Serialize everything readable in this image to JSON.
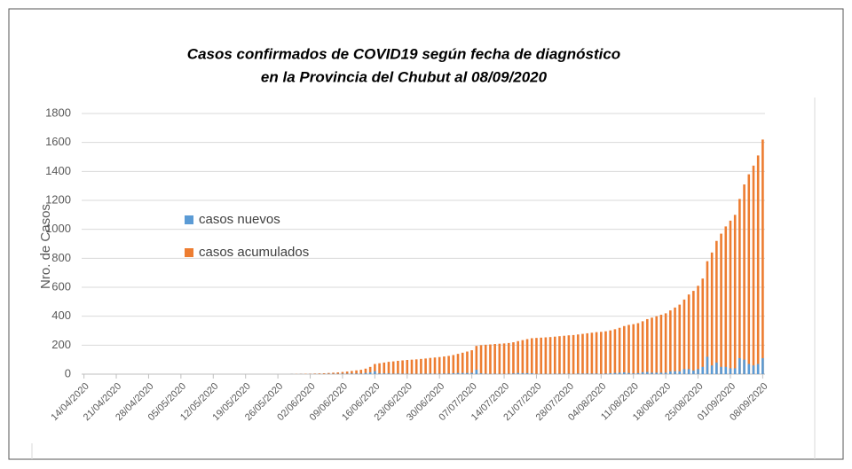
{
  "chart_data": {
    "type": "bar",
    "title": [
      "Casos confirmados de COVID19 según  fecha de diagnóstico",
      "en la  Provincia del Chubut al 08/09/2020"
    ],
    "ylabel": "Nro. de Casos",
    "categories": [
      "14/04/2020",
      null,
      null,
      null,
      null,
      null,
      null,
      "21/04/2020",
      null,
      null,
      null,
      null,
      null,
      null,
      "28/04/2020",
      null,
      null,
      null,
      null,
      null,
      null,
      "05/05/2020",
      null,
      null,
      null,
      null,
      null,
      null,
      "12/05/2020",
      null,
      null,
      null,
      null,
      null,
      null,
      "19/05/2020",
      null,
      null,
      null,
      null,
      null,
      null,
      "26/05/2020",
      null,
      null,
      null,
      null,
      null,
      null,
      "02/06/2020",
      null,
      null,
      null,
      null,
      null,
      null,
      "09/06/2020",
      null,
      null,
      null,
      null,
      null,
      null,
      "16/06/2020",
      null,
      null,
      null,
      null,
      null,
      null,
      "23/06/2020",
      null,
      null,
      null,
      null,
      null,
      null,
      "30/06/2020",
      null,
      null,
      null,
      null,
      null,
      null,
      "07/07/2020",
      null,
      null,
      null,
      null,
      null,
      null,
      "14/07/2020",
      null,
      null,
      null,
      null,
      null,
      null,
      "21/07/2020",
      null,
      null,
      null,
      null,
      null,
      null,
      "28/07/2020",
      null,
      null,
      null,
      null,
      null,
      null,
      "04/08/2020",
      null,
      null,
      null,
      null,
      null,
      null,
      "11/08/2020",
      null,
      null,
      null,
      null,
      null,
      null,
      "18/08/2020",
      null,
      null,
      null,
      null,
      null,
      null,
      "25/08/2020",
      null,
      null,
      null,
      null,
      null,
      null,
      "01/09/2020",
      null,
      null,
      null,
      null,
      null,
      null,
      "08/09/2020"
    ],
    "series": [
      {
        "name": "casos acumulados",
        "color": "#ed7d31",
        "values": [
          0,
          0,
          0,
          0,
          0,
          0,
          0,
          0,
          0,
          0,
          0,
          0,
          0,
          0,
          0,
          0,
          0,
          0,
          0,
          0,
          0,
          0,
          0,
          0,
          0,
          0,
          0,
          0,
          0,
          0,
          0,
          0,
          0,
          0,
          0,
          0,
          0,
          0,
          0,
          0,
          0,
          0,
          0,
          0,
          0,
          1,
          1,
          2,
          2,
          3,
          4,
          5,
          6,
          8,
          10,
          12,
          15,
          18,
          22,
          26,
          30,
          38,
          50,
          70,
          75,
          80,
          85,
          88,
          92,
          95,
          98,
          100,
          102,
          105,
          108,
          112,
          115,
          118,
          122,
          126,
          132,
          140,
          148,
          156,
          165,
          195,
          200,
          203,
          205,
          208,
          210,
          212,
          215,
          220,
          228,
          235,
          242,
          248,
          250,
          252,
          254,
          256,
          259,
          262,
          265,
          268,
          270,
          274,
          278,
          282,
          286,
          290,
          292,
          296,
          302,
          310,
          320,
          332,
          340,
          345,
          352,
          365,
          380,
          390,
          400,
          410,
          420,
          440,
          460,
          480,
          515,
          550,
          575,
          610,
          660,
          780,
          840,
          920,
          970,
          1020,
          1060,
          1100,
          1210,
          1310,
          1380,
          1440,
          1510,
          1620
        ]
      },
      {
        "name": "casos nuevos",
        "color": "#5b9bd5",
        "values": [
          0,
          0,
          0,
          0,
          0,
          0,
          0,
          0,
          0,
          0,
          0,
          0,
          0,
          0,
          0,
          0,
          0,
          0,
          0,
          0,
          0,
          0,
          0,
          0,
          0,
          0,
          0,
          0,
          0,
          0,
          0,
          0,
          0,
          0,
          0,
          0,
          0,
          0,
          0,
          0,
          0,
          0,
          0,
          0,
          0,
          1,
          0,
          1,
          0,
          1,
          1,
          1,
          1,
          2,
          2,
          2,
          3,
          3,
          4,
          4,
          4,
          8,
          12,
          20,
          5,
          5,
          5,
          3,
          4,
          3,
          3,
          2,
          2,
          3,
          3,
          4,
          3,
          3,
          4,
          4,
          6,
          8,
          8,
          8,
          9,
          30,
          5,
          3,
          2,
          3,
          2,
          2,
          3,
          5,
          8,
          7,
          7,
          6,
          2,
          2,
          2,
          2,
          3,
          3,
          3,
          3,
          2,
          4,
          4,
          4,
          4,
          4,
          2,
          4,
          6,
          8,
          10,
          12,
          8,
          5,
          7,
          13,
          15,
          10,
          10,
          10,
          10,
          20,
          20,
          20,
          35,
          35,
          25,
          35,
          50,
          120,
          60,
          80,
          50,
          50,
          40,
          40,
          110,
          100,
          70,
          60,
          70,
          110
        ]
      }
    ],
    "legend_order": [
      1,
      0
    ],
    "ylim": [
      0,
      1800
    ],
    "yticks": [
      0,
      200,
      400,
      600,
      800,
      1000,
      1200,
      1400,
      1600,
      1800
    ],
    "grid": true
  }
}
